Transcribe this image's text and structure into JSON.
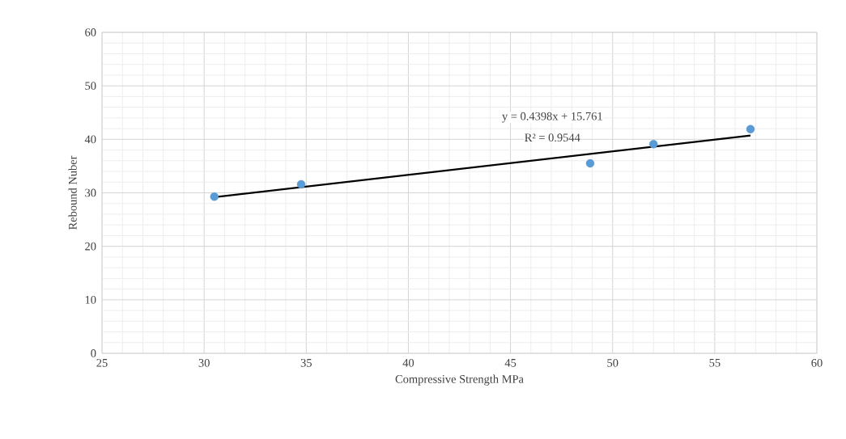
{
  "chart_data": {
    "type": "scatter",
    "xlabel": "Compressive Strength MPa",
    "ylabel": "Rebound Nuber",
    "series": [
      {
        "color": "#5b9bd5",
        "marker": "circle",
        "x": [
          30.5,
          34.75,
          48.9,
          52.0,
          56.75
        ],
        "values": [
          29.3,
          31.6,
          35.5,
          39.1,
          41.9
        ]
      },
      {
        "type": "line",
        "color": "#000000",
        "marker": "none",
        "line_style": "solid",
        "x": [
          30.5,
          56.75
        ],
        "values": [
          29.2,
          40.7
        ]
      }
    ],
    "xlim": [
      25,
      60
    ],
    "xticks": [
      25,
      30,
      35,
      40,
      45,
      50,
      55,
      60
    ],
    "ylim": [
      0,
      60
    ],
    "yticks": [
      0,
      10,
      20,
      30,
      40,
      50,
      60
    ],
    "grid": true,
    "annotations": [
      "y = 0.4398x + 15.761",
      "R² = 0.9544"
    ]
  }
}
